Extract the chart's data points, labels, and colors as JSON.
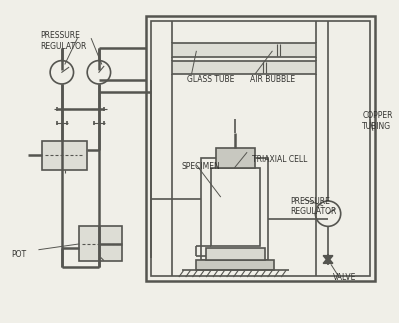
{
  "background_color": "#f0efe8",
  "line_color": "#555550",
  "text_color": "#333330",
  "fig_width": 3.99,
  "fig_height": 3.23,
  "dpi": 100,
  "labels": {
    "pressure_regulator_top": "PRESSURE\nREGULATOR",
    "glass_tube": "GLASS TUBE",
    "air_bubble": "AIR BUBBLE",
    "copper_tubing": "COPPER\nTUBING",
    "specimen": "SPECIMEN",
    "triaxial_cell": "TRIAXIAL CELL",
    "pressure_regulator_right": "PRESSURE\nREGULATOR",
    "pot": "POT",
    "valve": "VALVE"
  }
}
